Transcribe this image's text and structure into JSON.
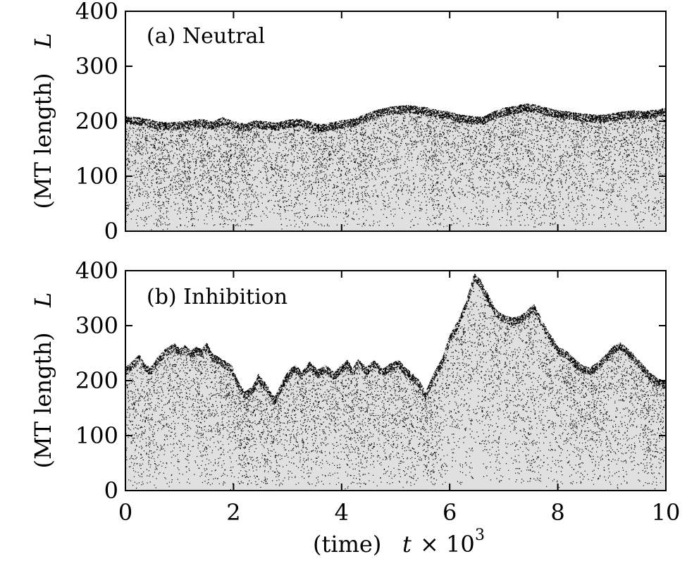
{
  "chart_data": [
    {
      "type": "area",
      "panel_label": "(a) Neutral",
      "ylabel": "(MT length)",
      "ylabel_symbol": "L",
      "xlim": [
        0,
        10
      ],
      "ylim": [
        0,
        400
      ],
      "xticks": [
        "0",
        "2",
        "4",
        "6",
        "8",
        "10"
      ],
      "yticks": [
        "0",
        "100",
        "200",
        "300",
        "400"
      ],
      "fill_color": "#e0e0e0",
      "dot_color": "#000000",
      "envelope": {
        "x": [
          0,
          0.2,
          0.4,
          0.6,
          0.8,
          1.0,
          1.2,
          1.4,
          1.6,
          1.8,
          2.0,
          2.2,
          2.4,
          2.6,
          2.8,
          3.0,
          3.2,
          3.4,
          3.6,
          3.8,
          4.0,
          4.2,
          4.4,
          4.6,
          4.8,
          5.0,
          5.2,
          5.4,
          5.6,
          5.8,
          6.0,
          6.2,
          6.4,
          6.6,
          6.8,
          7.0,
          7.2,
          7.4,
          7.6,
          7.8,
          8.0,
          8.2,
          8.4,
          8.6,
          8.8,
          9.0,
          9.2,
          9.4,
          9.6,
          9.8,
          10.0
        ],
        "y": [
          210,
          208,
          205,
          200,
          198,
          200,
          202,
          205,
          200,
          208,
          200,
          196,
          202,
          200,
          198,
          203,
          205,
          200,
          195,
          198,
          202,
          205,
          212,
          220,
          225,
          228,
          230,
          228,
          225,
          220,
          218,
          212,
          210,
          208,
          218,
          225,
          228,
          233,
          230,
          225,
          220,
          218,
          215,
          213,
          212,
          215,
          218,
          220,
          219,
          221,
          225
        ]
      }
    },
    {
      "type": "area",
      "panel_label": "(b) Inhibition",
      "ylabel": "(MT length)",
      "ylabel_symbol": "L",
      "xlabel": "(time)",
      "xlabel_symbol": "t",
      "xlabel_scale": "× 10",
      "xlabel_exponent": "3",
      "xlim": [
        0,
        10
      ],
      "ylim": [
        0,
        400
      ],
      "xticks": [
        "0",
        "2",
        "4",
        "6",
        "8",
        "10"
      ],
      "yticks": [
        "0",
        "100",
        "200",
        "300",
        "400"
      ],
      "fill_color": "#e0e0e0",
      "dot_color": "#000000",
      "envelope": {
        "x": [
          0,
          0.15,
          0.25,
          0.35,
          0.45,
          0.5,
          0.6,
          0.75,
          0.9,
          1.0,
          1.1,
          1.2,
          1.3,
          1.4,
          1.5,
          1.6,
          1.7,
          1.8,
          1.95,
          2.05,
          2.2,
          2.35,
          2.45,
          2.6,
          2.75,
          2.85,
          2.95,
          3.05,
          3.15,
          3.25,
          3.4,
          3.55,
          3.7,
          3.85,
          4.0,
          4.1,
          4.2,
          4.3,
          4.45,
          4.6,
          4.75,
          4.9,
          5.05,
          5.2,
          5.4,
          5.55,
          5.7,
          5.85,
          6.0,
          6.15,
          6.3,
          6.45,
          6.55,
          6.7,
          6.85,
          6.95,
          7.05,
          7.15,
          7.3,
          7.45,
          7.55,
          7.7,
          7.85,
          8.0,
          8.15,
          8.3,
          8.45,
          8.6,
          8.75,
          8.9,
          9.0,
          9.15,
          9.25,
          9.4,
          9.55,
          9.7,
          9.85,
          10.0
        ],
        "y": [
          225,
          238,
          248,
          232,
          225,
          230,
          245,
          260,
          268,
          258,
          265,
          255,
          262,
          258,
          270,
          250,
          245,
          238,
          230,
          205,
          180,
          190,
          212,
          195,
          170,
          190,
          210,
          222,
          230,
          215,
          235,
          220,
          230,
          215,
          230,
          238,
          222,
          240,
          225,
          238,
          222,
          232,
          238,
          222,
          205,
          180,
          215,
          240,
          285,
          310,
          345,
          395,
          385,
          358,
          330,
          322,
          318,
          315,
          318,
          330,
          340,
          310,
          285,
          262,
          255,
          240,
          228,
          225,
          235,
          250,
          262,
          270,
          262,
          248,
          232,
          215,
          205,
          198
        ]
      }
    }
  ]
}
